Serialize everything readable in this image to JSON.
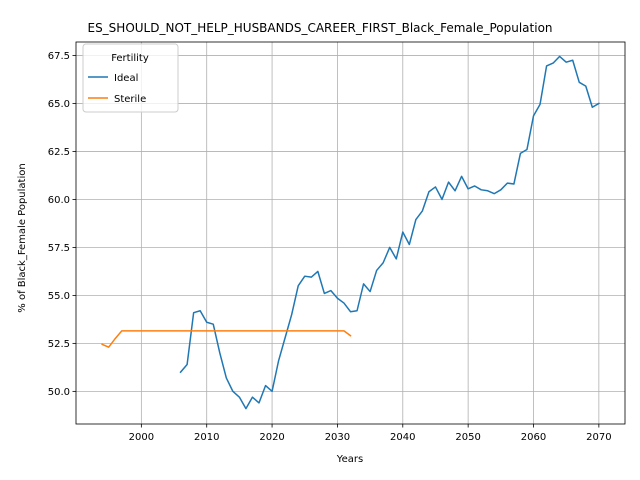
{
  "chart_data": {
    "type": "line",
    "title": "ES_SHOULD_NOT_HELP_HUSBANDS_CAREER_FIRST_Black_Female_Population",
    "xlabel": "Years",
    "ylabel": "% of Black_Female Population",
    "xlim": [
      1990,
      2074
    ],
    "ylim": [
      48.3,
      68.2
    ],
    "xticks": [
      2000,
      2010,
      2020,
      2030,
      2040,
      2050,
      2060,
      2070
    ],
    "yticks": [
      50.0,
      52.5,
      55.0,
      57.5,
      60.0,
      62.5,
      65.0,
      67.5
    ],
    "grid": true,
    "legend": {
      "title": "Fertility",
      "placement": "top-left"
    },
    "series": [
      {
        "name": "Ideal",
        "color": "#1f77b4",
        "x": [
          2006,
          2007,
          2008,
          2009,
          2010,
          2011,
          2012,
          2013,
          2014,
          2015,
          2016,
          2017,
          2018,
          2019,
          2020,
          2021,
          2022,
          2023,
          2024,
          2025,
          2026,
          2027,
          2028,
          2029,
          2030,
          2031,
          2032,
          2033,
          2034,
          2035,
          2036,
          2037,
          2038,
          2039,
          2040,
          2041,
          2042,
          2043,
          2044,
          2045,
          2046,
          2047,
          2048,
          2049,
          2050,
          2051,
          2052,
          2053,
          2054,
          2055,
          2056,
          2057,
          2058,
          2059,
          2060,
          2061,
          2062,
          2063,
          2064,
          2065,
          2066,
          2067,
          2068,
          2069,
          2070
        ],
        "values": [
          51.0,
          51.4,
          54.1,
          54.2,
          53.6,
          53.5,
          52.0,
          50.7,
          50.0,
          49.7,
          49.1,
          49.7,
          49.4,
          50.3,
          50.0,
          51.6,
          52.8,
          54.0,
          55.5,
          56.0,
          55.95,
          56.25,
          55.1,
          55.25,
          54.85,
          54.6,
          54.15,
          54.2,
          55.6,
          55.2,
          56.3,
          56.7,
          57.5,
          56.9,
          58.3,
          57.65,
          58.95,
          59.4,
          60.4,
          60.65,
          60.0,
          60.9,
          60.45,
          61.2,
          60.55,
          60.7,
          60.5,
          60.45,
          60.3,
          60.5,
          60.85,
          60.8,
          62.4,
          62.6,
          64.35,
          64.95,
          66.95,
          67.1,
          67.45,
          67.15,
          67.25,
          66.1,
          65.9,
          64.8,
          65.0
        ]
      },
      {
        "name": "Sterile",
        "color": "#ff7f0e",
        "x": [
          1994,
          1995,
          1996,
          1997,
          1998,
          1999,
          2000,
          2001,
          2002,
          2003,
          2004,
          2005,
          2006,
          2007,
          2008,
          2009,
          2010,
          2011,
          2012,
          2013,
          2014,
          2015,
          2016,
          2017,
          2018,
          2019,
          2020,
          2021,
          2022,
          2023,
          2024,
          2025,
          2026,
          2027,
          2028,
          2029,
          2030,
          2031,
          2032
        ],
        "values": [
          52.45,
          52.3,
          52.75,
          53.15,
          53.15,
          53.15,
          53.15,
          53.15,
          53.15,
          53.15,
          53.15,
          53.15,
          53.15,
          53.15,
          53.15,
          53.15,
          53.15,
          53.15,
          53.15,
          53.15,
          53.15,
          53.15,
          53.15,
          53.15,
          53.15,
          53.15,
          53.15,
          53.15,
          53.15,
          53.15,
          53.15,
          53.15,
          53.15,
          53.15,
          53.15,
          53.15,
          53.15,
          53.15,
          52.9
        ]
      }
    ]
  }
}
